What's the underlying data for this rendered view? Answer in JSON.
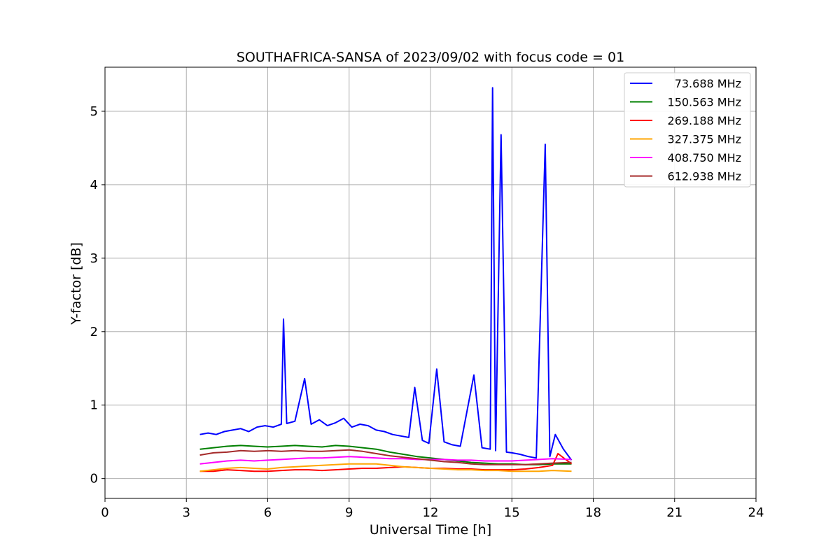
{
  "chart_data": {
    "type": "line",
    "title": "SOUTHAFRICA-SANSA of 2023/09/02 with focus code = 01",
    "xlabel": "Universal Time [h]",
    "ylabel": "Y-factor [dB]",
    "xlim": [
      0,
      24
    ],
    "ylim": [
      -0.27,
      5.6
    ],
    "xticks": [
      0,
      3,
      6,
      9,
      12,
      15,
      18,
      21,
      24
    ],
    "yticks": [
      0,
      1,
      2,
      3,
      4,
      5
    ],
    "xtick_labels": [
      "0",
      "3",
      "6",
      "9",
      "12",
      "15",
      "18",
      "21",
      "24"
    ],
    "ytick_labels": [
      "0",
      "1",
      "2",
      "3",
      "4",
      "5"
    ],
    "grid": true,
    "legend_position": "top-right",
    "series": [
      {
        "name": " 73.688 MHz",
        "color": "#0000ff",
        "x": [
          3.5,
          3.8,
          4.1,
          4.4,
          4.7,
          5.0,
          5.3,
          5.6,
          5.9,
          6.2,
          6.5,
          6.58,
          6.7,
          7.0,
          7.36,
          7.6,
          7.9,
          8.2,
          8.5,
          8.8,
          9.1,
          9.4,
          9.7,
          10.0,
          10.3,
          10.6,
          10.9,
          11.2,
          11.42,
          11.7,
          11.94,
          12.23,
          12.5,
          12.8,
          13.1,
          13.6,
          13.9,
          14.2,
          14.29,
          14.4,
          14.6,
          14.8,
          15.0,
          15.3,
          15.6,
          15.9,
          16.23,
          16.4,
          16.6,
          16.9,
          17.2
        ],
        "y": [
          0.6,
          0.62,
          0.6,
          0.64,
          0.66,
          0.68,
          0.64,
          0.7,
          0.72,
          0.7,
          0.74,
          2.17,
          0.75,
          0.78,
          1.36,
          0.74,
          0.8,
          0.72,
          0.76,
          0.82,
          0.7,
          0.74,
          0.72,
          0.66,
          0.64,
          0.6,
          0.58,
          0.56,
          1.24,
          0.52,
          0.48,
          1.49,
          0.5,
          0.46,
          0.44,
          1.41,
          0.42,
          0.4,
          5.32,
          0.38,
          4.68,
          0.36,
          0.35,
          0.33,
          0.3,
          0.28,
          4.55,
          0.3,
          0.6,
          0.4,
          0.25
        ]
      },
      {
        "name": "150.563 MHz",
        "color": "#008000",
        "x": [
          3.5,
          4.0,
          4.5,
          5.0,
          5.5,
          6.0,
          6.5,
          7.0,
          7.5,
          8.0,
          8.5,
          9.0,
          9.5,
          10.0,
          10.5,
          11.0,
          11.5,
          12.0,
          12.5,
          13.0,
          13.5,
          14.0,
          14.5,
          15.0,
          15.5,
          16.0,
          16.5,
          17.2
        ],
        "y": [
          0.4,
          0.42,
          0.44,
          0.45,
          0.44,
          0.43,
          0.44,
          0.45,
          0.44,
          0.43,
          0.45,
          0.44,
          0.42,
          0.4,
          0.36,
          0.33,
          0.3,
          0.28,
          0.26,
          0.24,
          0.22,
          0.21,
          0.2,
          0.2,
          0.19,
          0.19,
          0.2,
          0.2
        ]
      },
      {
        "name": "269.188 MHz",
        "color": "#ff0000",
        "x": [
          3.5,
          4.0,
          4.5,
          5.0,
          5.5,
          6.0,
          6.5,
          7.0,
          7.5,
          8.0,
          8.5,
          9.0,
          9.5,
          10.0,
          10.5,
          11.0,
          11.5,
          12.0,
          12.5,
          13.0,
          13.5,
          14.0,
          14.5,
          15.0,
          15.5,
          16.0,
          16.5,
          16.7,
          17.2
        ],
        "y": [
          0.1,
          0.1,
          0.12,
          0.11,
          0.1,
          0.1,
          0.11,
          0.12,
          0.12,
          0.11,
          0.12,
          0.13,
          0.14,
          0.14,
          0.15,
          0.16,
          0.15,
          0.14,
          0.14,
          0.13,
          0.13,
          0.12,
          0.12,
          0.12,
          0.13,
          0.15,
          0.18,
          0.34,
          0.2
        ]
      },
      {
        "name": "327.375 MHz",
        "color": "#ffa500",
        "x": [
          3.5,
          4.0,
          4.5,
          5.0,
          5.5,
          6.0,
          6.5,
          7.0,
          7.5,
          8.0,
          8.5,
          9.0,
          9.5,
          10.0,
          10.5,
          11.0,
          11.5,
          12.0,
          12.5,
          13.0,
          13.5,
          14.0,
          14.5,
          15.0,
          15.5,
          16.0,
          16.5,
          17.2
        ],
        "y": [
          0.1,
          0.12,
          0.14,
          0.15,
          0.14,
          0.13,
          0.15,
          0.16,
          0.17,
          0.18,
          0.19,
          0.2,
          0.2,
          0.2,
          0.18,
          0.16,
          0.15,
          0.14,
          0.13,
          0.12,
          0.12,
          0.11,
          0.11,
          0.1,
          0.1,
          0.1,
          0.11,
          0.1
        ]
      },
      {
        "name": "408.750 MHz",
        "color": "#ff00ff",
        "x": [
          3.5,
          4.0,
          4.5,
          5.0,
          5.5,
          6.0,
          6.5,
          7.0,
          7.5,
          8.0,
          8.5,
          9.0,
          9.5,
          10.0,
          10.5,
          11.0,
          11.5,
          12.0,
          12.5,
          13.0,
          13.5,
          14.0,
          14.5,
          15.0,
          15.5,
          16.0,
          16.5,
          17.2
        ],
        "y": [
          0.2,
          0.22,
          0.24,
          0.25,
          0.24,
          0.25,
          0.26,
          0.27,
          0.28,
          0.28,
          0.29,
          0.3,
          0.29,
          0.28,
          0.27,
          0.27,
          0.26,
          0.26,
          0.26,
          0.25,
          0.25,
          0.24,
          0.24,
          0.24,
          0.25,
          0.26,
          0.27,
          0.26
        ]
      },
      {
        "name": "612.938 MHz",
        "color": "#a52a2a",
        "x": [
          3.5,
          4.0,
          4.5,
          5.0,
          5.5,
          6.0,
          6.5,
          7.0,
          7.5,
          8.0,
          8.5,
          9.0,
          9.5,
          10.0,
          10.5,
          11.0,
          11.5,
          12.0,
          12.5,
          13.0,
          13.5,
          14.0,
          14.5,
          15.0,
          15.5,
          16.0,
          16.5,
          17.2
        ],
        "y": [
          0.32,
          0.35,
          0.36,
          0.38,
          0.37,
          0.38,
          0.37,
          0.38,
          0.37,
          0.37,
          0.38,
          0.39,
          0.37,
          0.34,
          0.31,
          0.29,
          0.27,
          0.25,
          0.23,
          0.22,
          0.2,
          0.19,
          0.19,
          0.19,
          0.19,
          0.2,
          0.21,
          0.22
        ]
      }
    ]
  }
}
